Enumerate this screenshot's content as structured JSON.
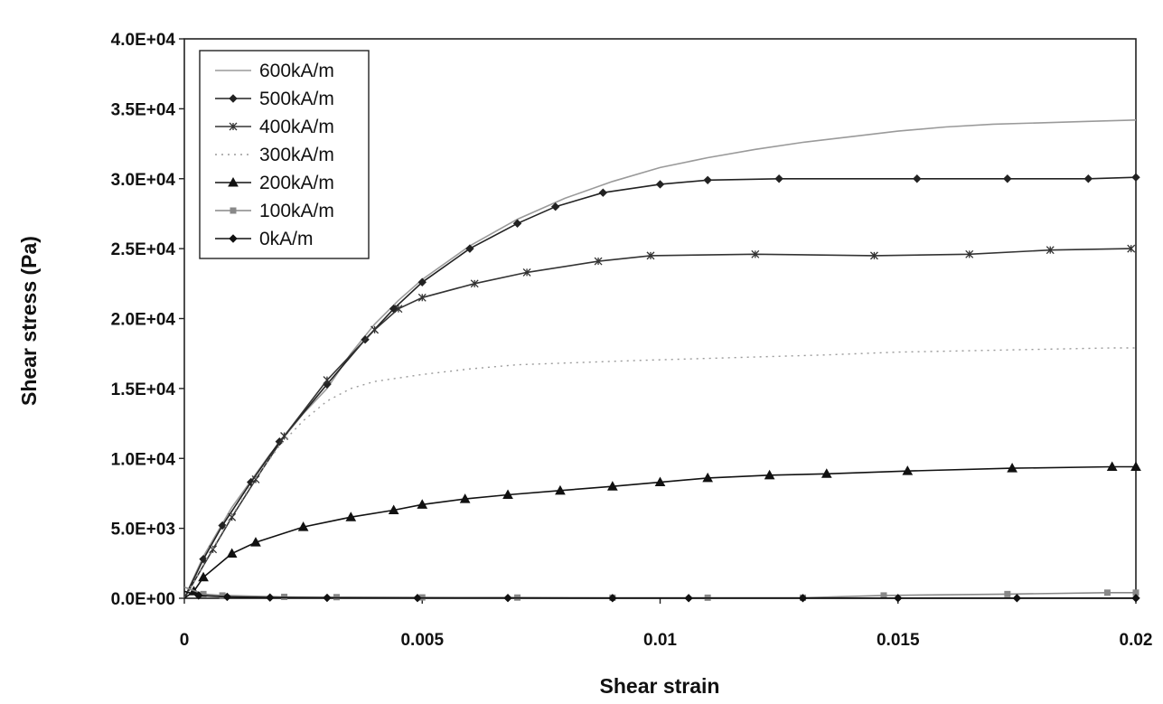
{
  "chart_data": {
    "type": "line",
    "title": "",
    "xlabel": "Shear strain",
    "ylabel": "Shear stress (Pa)",
    "xlim": [
      0,
      0.02
    ],
    "ylim": [
      0,
      40000
    ],
    "x_ticks": [
      0,
      0.005,
      0.01,
      0.015,
      0.02
    ],
    "x_tick_labels": [
      "0",
      "0.005",
      "0.01",
      "0.015",
      "0.02"
    ],
    "y_ticks": [
      0,
      5000,
      10000,
      15000,
      20000,
      25000,
      30000,
      35000,
      40000
    ],
    "y_tick_labels": [
      "0.0E+00",
      "5.0E+03",
      "1.0E+04",
      "1.5E+04",
      "2.0E+04",
      "2.5E+04",
      "3.0E+04",
      "3.5E+04",
      "4.0E+04"
    ],
    "grid": false,
    "legend_position": "top-left",
    "series": [
      {
        "name": "600kA/m",
        "color": "#9a9a9a",
        "marker": "none",
        "dash": "solid",
        "points": [
          [
            0,
            0
          ],
          [
            0.0004,
            3000
          ],
          [
            0.001,
            6500
          ],
          [
            0.0018,
            10300
          ],
          [
            0.0025,
            13200
          ],
          [
            0.003,
            15000
          ],
          [
            0.0035,
            17500
          ],
          [
            0.004,
            19600
          ],
          [
            0.0045,
            21300
          ],
          [
            0.005,
            22800
          ],
          [
            0.006,
            25200
          ],
          [
            0.007,
            27100
          ],
          [
            0.008,
            28600
          ],
          [
            0.009,
            29800
          ],
          [
            0.01,
            30800
          ],
          [
            0.011,
            31500
          ],
          [
            0.012,
            32100
          ],
          [
            0.013,
            32600
          ],
          [
            0.014,
            33000
          ],
          [
            0.015,
            33400
          ],
          [
            0.016,
            33700
          ],
          [
            0.017,
            33900
          ],
          [
            0.018,
            34000
          ],
          [
            0.019,
            34100
          ],
          [
            0.02,
            34200
          ]
        ]
      },
      {
        "name": "500kA/m",
        "color": "#222222",
        "marker": "diamond",
        "dash": "solid",
        "points": [
          [
            0,
            0
          ],
          [
            0.0004,
            2800
          ],
          [
            0.0008,
            5200
          ],
          [
            0.0014,
            8300
          ],
          [
            0.002,
            11200
          ],
          [
            0.003,
            15300
          ],
          [
            0.0038,
            18500
          ],
          [
            0.0044,
            20700
          ],
          [
            0.005,
            22600
          ],
          [
            0.006,
            25000
          ],
          [
            0.007,
            26800
          ],
          [
            0.0078,
            28000
          ],
          [
            0.0088,
            29000
          ],
          [
            0.01,
            29600
          ],
          [
            0.011,
            29900
          ],
          [
            0.0125,
            30000
          ],
          [
            0.0154,
            30000
          ],
          [
            0.0173,
            30000
          ],
          [
            0.019,
            30000
          ],
          [
            0.02,
            30100
          ]
        ]
      },
      {
        "name": "400kA/m",
        "color": "#333333",
        "marker": "star",
        "dash": "solid",
        "points": [
          [
            0,
            0
          ],
          [
            0.0006,
            3500
          ],
          [
            0.001,
            5800
          ],
          [
            0.0015,
            8500
          ],
          [
            0.0021,
            11600
          ],
          [
            0.003,
            15600
          ],
          [
            0.004,
            19200
          ],
          [
            0.0045,
            20700
          ],
          [
            0.005,
            21500
          ],
          [
            0.0061,
            22500
          ],
          [
            0.0072,
            23300
          ],
          [
            0.0087,
            24100
          ],
          [
            0.0098,
            24500
          ],
          [
            0.012,
            24600
          ],
          [
            0.0145,
            24500
          ],
          [
            0.0165,
            24600
          ],
          [
            0.0182,
            24900
          ],
          [
            0.0199,
            25000
          ]
        ]
      },
      {
        "name": "300kA/m",
        "color": "#9a9a9a",
        "marker": "none",
        "dash": "dotted",
        "points": [
          [
            0,
            0
          ],
          [
            0.0005,
            3000
          ],
          [
            0.001,
            5900
          ],
          [
            0.0015,
            8600
          ],
          [
            0.002,
            10900
          ],
          [
            0.0025,
            12700
          ],
          [
            0.003,
            14100
          ],
          [
            0.0035,
            15000
          ],
          [
            0.004,
            15500
          ],
          [
            0.005,
            16000
          ],
          [
            0.006,
            16400
          ],
          [
            0.007,
            16700
          ],
          [
            0.0095,
            17000
          ],
          [
            0.0115,
            17200
          ],
          [
            0.0135,
            17400
          ],
          [
            0.015,
            17600
          ],
          [
            0.0165,
            17700
          ],
          [
            0.018,
            17800
          ],
          [
            0.0195,
            17900
          ],
          [
            0.02,
            17900
          ]
        ]
      },
      {
        "name": "200kA/m",
        "color": "#111111",
        "marker": "triangle",
        "dash": "solid",
        "points": [
          [
            0,
            0
          ],
          [
            0.0002,
            500
          ],
          [
            0.0004,
            1500
          ],
          [
            0.001,
            3200
          ],
          [
            0.0015,
            4000
          ],
          [
            0.0025,
            5100
          ],
          [
            0.0035,
            5800
          ],
          [
            0.0044,
            6300
          ],
          [
            0.005,
            6700
          ],
          [
            0.0059,
            7100
          ],
          [
            0.0068,
            7400
          ],
          [
            0.0079,
            7700
          ],
          [
            0.009,
            8000
          ],
          [
            0.01,
            8300
          ],
          [
            0.011,
            8600
          ],
          [
            0.0123,
            8800
          ],
          [
            0.0135,
            8900
          ],
          [
            0.0152,
            9100
          ],
          [
            0.0174,
            9300
          ],
          [
            0.0195,
            9400
          ],
          [
            0.02,
            9400
          ]
        ]
      },
      {
        "name": "100kA/m",
        "color": "#888888",
        "marker": "square",
        "dash": "solid",
        "points": [
          [
            0,
            800
          ],
          [
            0.0004,
            300
          ],
          [
            0.0008,
            200
          ],
          [
            0.0021,
            100
          ],
          [
            0.0032,
            80
          ],
          [
            0.005,
            60
          ],
          [
            0.007,
            50
          ],
          [
            0.009,
            40
          ],
          [
            0.011,
            40
          ],
          [
            0.013,
            40
          ],
          [
            0.0147,
            200
          ],
          [
            0.0173,
            300
          ],
          [
            0.0194,
            400
          ],
          [
            0.02,
            400
          ]
        ]
      },
      {
        "name": "0kA/m",
        "color": "#111111",
        "marker": "diamond",
        "dash": "solid",
        "points": [
          [
            0,
            500
          ],
          [
            0.0003,
            200
          ],
          [
            0.0009,
            100
          ],
          [
            0.0018,
            50
          ],
          [
            0.003,
            30
          ],
          [
            0.0049,
            20
          ],
          [
            0.0068,
            20
          ],
          [
            0.009,
            10
          ],
          [
            0.0106,
            10
          ],
          [
            0.013,
            10
          ],
          [
            0.015,
            10
          ],
          [
            0.0175,
            10
          ],
          [
            0.02,
            10
          ]
        ]
      }
    ]
  }
}
